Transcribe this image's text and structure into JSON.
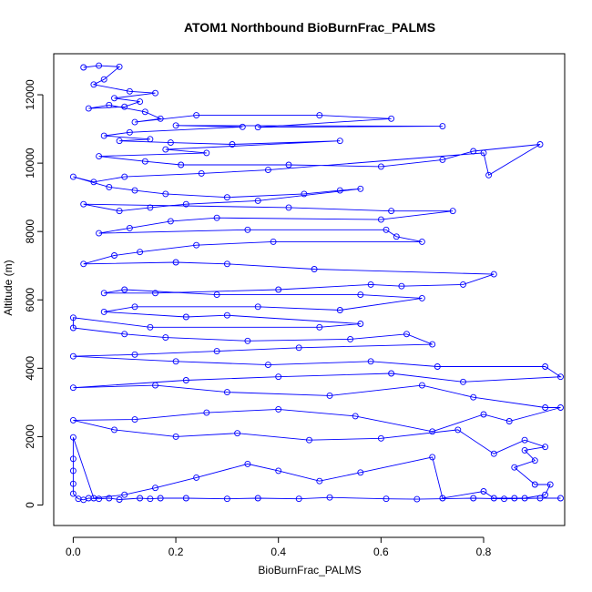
{
  "chart_data": {
    "type": "line",
    "title": "ATOM1 Northbound BioBurnFrac_PALMS",
    "xlabel": "BioBurnFrac_PALMS",
    "ylabel": "Altitude (m)",
    "xlim": [
      -0.038,
      0.958
    ],
    "ylim": [
      -600,
      13200
    ],
    "xticks": [
      "0.0",
      "0.2",
      "0.4",
      "0.6",
      "0.8"
    ],
    "xtick_values": [
      0,
      0.2,
      0.4,
      0.6,
      0.8
    ],
    "yticks": [
      "0",
      "2000",
      "4000",
      "6000",
      "8000",
      "10000",
      "12000"
    ],
    "ytick_values": [
      0,
      2000,
      4000,
      6000,
      8000,
      10000,
      12000
    ],
    "series": [
      {
        "color": "#0000ff",
        "marker": "open-circle",
        "points": [
          [
            0.02,
            12800
          ],
          [
            0.05,
            12850
          ],
          [
            0.09,
            12820
          ],
          [
            0.06,
            12450
          ],
          [
            0.04,
            12300
          ],
          [
            0.11,
            12100
          ],
          [
            0.16,
            12050
          ],
          [
            0.08,
            11900
          ],
          [
            0.13,
            11800
          ],
          [
            0.1,
            11650
          ],
          [
            0.03,
            11600
          ],
          [
            0.07,
            11700
          ],
          [
            0.14,
            11500
          ],
          [
            0.17,
            11300
          ],
          [
            0.12,
            11200
          ],
          [
            0.24,
            11400
          ],
          [
            0.48,
            11400
          ],
          [
            0.62,
            11300
          ],
          [
            0.36,
            11050
          ],
          [
            0.72,
            11080
          ],
          [
            0.2,
            11100
          ],
          [
            0.33,
            11060
          ],
          [
            0.11,
            10900
          ],
          [
            0.06,
            10800
          ],
          [
            0.15,
            10700
          ],
          [
            0.09,
            10650
          ],
          [
            0.19,
            10600
          ],
          [
            0.31,
            10550
          ],
          [
            0.52,
            10650
          ],
          [
            0.18,
            10400
          ],
          [
            0.26,
            10300
          ],
          [
            0.05,
            10200
          ],
          [
            0.14,
            10050
          ],
          [
            0.21,
            9950
          ],
          [
            0.42,
            9950
          ],
          [
            0.6,
            9900
          ],
          [
            0.72,
            10100
          ],
          [
            0.78,
            10350
          ],
          [
            0.91,
            10550
          ],
          [
            0.81,
            9650
          ],
          [
            0.8,
            10300
          ],
          [
            0.38,
            9800
          ],
          [
            0.25,
            9700
          ],
          [
            0.1,
            9600
          ],
          [
            0.04,
            9450
          ],
          [
            0.0,
            9600
          ],
          [
            0.07,
            9300
          ],
          [
            0.12,
            9200
          ],
          [
            0.18,
            9100
          ],
          [
            0.3,
            9000
          ],
          [
            0.45,
            9100
          ],
          [
            0.52,
            9200
          ],
          [
            0.56,
            9250
          ],
          [
            0.36,
            8900
          ],
          [
            0.22,
            8800
          ],
          [
            0.15,
            8700
          ],
          [
            0.09,
            8600
          ],
          [
            0.02,
            8800
          ],
          [
            0.42,
            8700
          ],
          [
            0.62,
            8600
          ],
          [
            0.74,
            8600
          ],
          [
            0.6,
            8350
          ],
          [
            0.28,
            8400
          ],
          [
            0.19,
            8300
          ],
          [
            0.11,
            8100
          ],
          [
            0.05,
            7950
          ],
          [
            0.34,
            8050
          ],
          [
            0.61,
            8050
          ],
          [
            0.63,
            7850
          ],
          [
            0.68,
            7700
          ],
          [
            0.39,
            7700
          ],
          [
            0.24,
            7600
          ],
          [
            0.13,
            7400
          ],
          [
            0.08,
            7300
          ],
          [
            0.02,
            7050
          ],
          [
            0.2,
            7100
          ],
          [
            0.3,
            7050
          ],
          [
            0.47,
            6900
          ],
          [
            0.82,
            6750
          ],
          [
            0.76,
            6450
          ],
          [
            0.64,
            6400
          ],
          [
            0.58,
            6450
          ],
          [
            0.4,
            6300
          ],
          [
            0.16,
            6200
          ],
          [
            0.06,
            6200
          ],
          [
            0.1,
            6300
          ],
          [
            0.28,
            6150
          ],
          [
            0.56,
            6150
          ],
          [
            0.68,
            6050
          ],
          [
            0.52,
            5700
          ],
          [
            0.36,
            5800
          ],
          [
            0.12,
            5800
          ],
          [
            0.06,
            5650
          ],
          [
            0.22,
            5500
          ],
          [
            0.3,
            5550
          ],
          [
            0.56,
            5300
          ],
          [
            0.48,
            5200
          ],
          [
            0.15,
            5200
          ],
          [
            0.0,
            5480
          ],
          [
            0.0,
            5180
          ],
          [
            0.1,
            5000
          ],
          [
            0.18,
            4900
          ],
          [
            0.34,
            4800
          ],
          [
            0.54,
            4850
          ],
          [
            0.65,
            5000
          ],
          [
            0.7,
            4700
          ],
          [
            0.44,
            4600
          ],
          [
            0.28,
            4500
          ],
          [
            0.12,
            4400
          ],
          [
            0.0,
            4350
          ],
          [
            0.2,
            4200
          ],
          [
            0.38,
            4100
          ],
          [
            0.58,
            4200
          ],
          [
            0.71,
            4050
          ],
          [
            0.92,
            4050
          ],
          [
            0.95,
            3750
          ],
          [
            0.76,
            3600
          ],
          [
            0.62,
            3850
          ],
          [
            0.4,
            3750
          ],
          [
            0.22,
            3650
          ],
          [
            0.0,
            3430
          ],
          [
            0.16,
            3500
          ],
          [
            0.3,
            3300
          ],
          [
            0.5,
            3200
          ],
          [
            0.68,
            3500
          ],
          [
            0.78,
            3150
          ],
          [
            0.92,
            2850
          ],
          [
            0.95,
            2850
          ],
          [
            0.85,
            2450
          ],
          [
            0.8,
            2650
          ],
          [
            0.7,
            2150
          ],
          [
            0.55,
            2600
          ],
          [
            0.4,
            2800
          ],
          [
            0.26,
            2700
          ],
          [
            0.12,
            2500
          ],
          [
            0.0,
            2480
          ],
          [
            0.08,
            2200
          ],
          [
            0.2,
            2000
          ],
          [
            0.32,
            2100
          ],
          [
            0.46,
            1900
          ],
          [
            0.6,
            1950
          ],
          [
            0.75,
            2200
          ],
          [
            0.82,
            1500
          ],
          [
            0.88,
            1900
          ],
          [
            0.92,
            1700
          ],
          [
            0.88,
            1600
          ],
          [
            0.9,
            1300
          ],
          [
            0.86,
            1100
          ],
          [
            0.9,
            600
          ],
          [
            0.93,
            600
          ],
          [
            0.92,
            300
          ],
          [
            0.88,
            200
          ],
          [
            0.86,
            200
          ],
          [
            0.82,
            200
          ],
          [
            0.8,
            400
          ],
          [
            0.72,
            200
          ],
          [
            0.7,
            1400
          ],
          [
            0.56,
            950
          ],
          [
            0.48,
            700
          ],
          [
            0.4,
            1000
          ],
          [
            0.34,
            1200
          ],
          [
            0.24,
            800
          ],
          [
            0.16,
            500
          ],
          [
            0.1,
            300
          ],
          [
            0.04,
            200
          ],
          [
            0.0,
            1980
          ],
          [
            0.0,
            1350
          ],
          [
            0.0,
            1000
          ],
          [
            0.0,
            620
          ],
          [
            0.0,
            330
          ],
          [
            0.01,
            180
          ],
          [
            0.02,
            150
          ],
          [
            0.03,
            200
          ],
          [
            0.05,
            180
          ],
          [
            0.07,
            200
          ],
          [
            0.09,
            160
          ],
          [
            0.13,
            200
          ],
          [
            0.15,
            180
          ],
          [
            0.17,
            200
          ],
          [
            0.22,
            200
          ],
          [
            0.3,
            180
          ],
          [
            0.36,
            200
          ],
          [
            0.44,
            180
          ],
          [
            0.5,
            220
          ],
          [
            0.61,
            180
          ],
          [
            0.67,
            170
          ],
          [
            0.78,
            200
          ],
          [
            0.84,
            180
          ],
          [
            0.91,
            200
          ],
          [
            0.95,
            200
          ]
        ]
      }
    ]
  }
}
